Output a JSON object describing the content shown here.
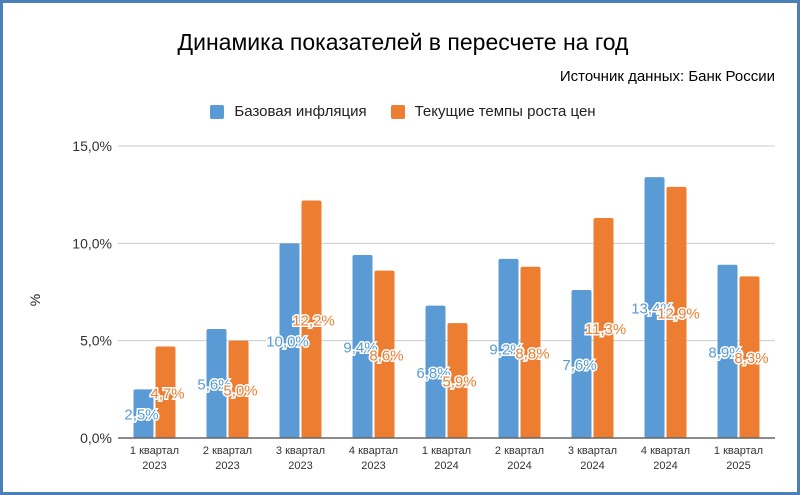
{
  "chart_data": {
    "type": "bar",
    "title": "Динамика показателей в пересчете на год",
    "subtitle": "Источник данных: Банк России",
    "ylabel": "%",
    "xlabel": "",
    "ylim": [
      0,
      15
    ],
    "yticks": [
      "0,0%",
      "5,0%",
      "10,0%",
      "15,0%"
    ],
    "grid": true,
    "legend_position": "top",
    "categories": [
      [
        "1 квартал",
        "2023"
      ],
      [
        "2 квартал",
        "2023"
      ],
      [
        "3 квартал",
        "2023"
      ],
      [
        "4 квартал",
        "2023"
      ],
      [
        "1 квартал",
        "2024"
      ],
      [
        "2 квартал",
        "2024"
      ],
      [
        "3 квартал",
        "2024"
      ],
      [
        "4 квартал",
        "2024"
      ],
      [
        "1 квартал",
        "2025"
      ]
    ],
    "series": [
      {
        "name": "Базовая инфляция",
        "color": "#5b9bd5",
        "values": [
          2.5,
          5.6,
          10.0,
          9.4,
          6.8,
          9.2,
          7.6,
          13.4,
          8.9
        ]
      },
      {
        "name": "Текущие темпы роста цен",
        "color": "#ed7d31",
        "values": [
          4.7,
          5.0,
          12.2,
          8.6,
          5.9,
          8.8,
          11.3,
          12.9,
          8.3
        ]
      }
    ]
  }
}
